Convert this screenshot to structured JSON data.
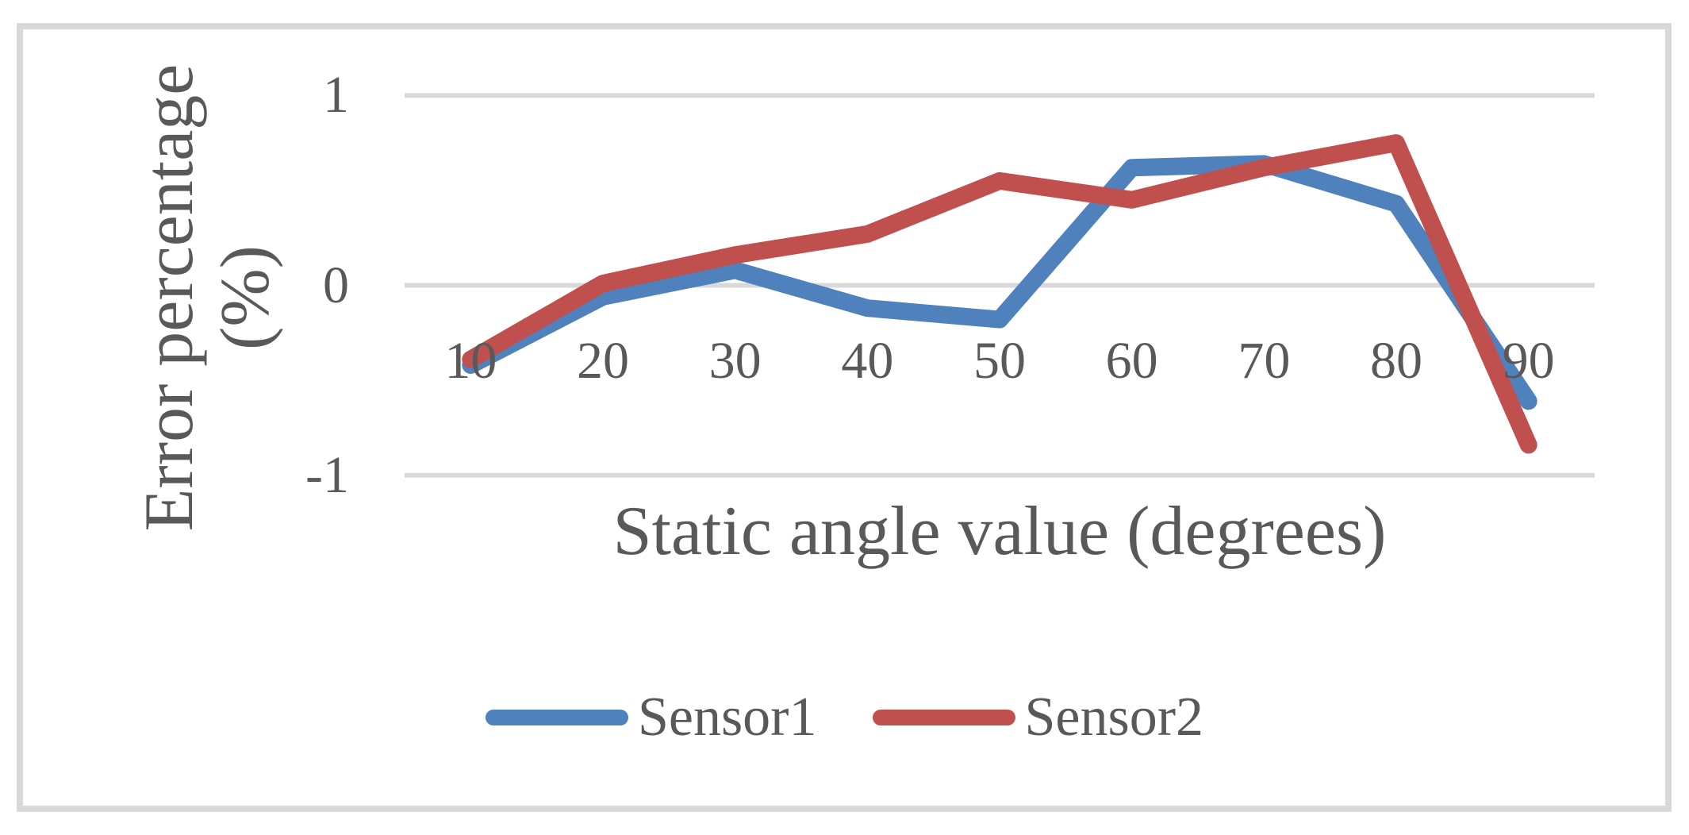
{
  "colors": {
    "sensor1": "#4F81BD",
    "sensor2": "#C0504D",
    "text": "#595959",
    "gridline": "#D9D9D9",
    "frame_border": "#D9D9D9",
    "background": "#FFFFFF"
  },
  "chart_data": {
    "type": "line",
    "categories": [
      "10",
      "20",
      "30",
      "40",
      "50",
      "60",
      "70",
      "80",
      "90"
    ],
    "series": [
      {
        "name": "Sensor1",
        "color": "#4F81BD",
        "values": [
          -0.42,
          -0.06,
          0.08,
          -0.12,
          -0.18,
          0.62,
          0.64,
          0.43,
          -0.61
        ]
      },
      {
        "name": "Sensor2",
        "color": "#C0504D",
        "values": [
          -0.39,
          0.01,
          0.16,
          0.27,
          0.55,
          0.45,
          0.62,
          0.75,
          -0.84
        ]
      }
    ],
    "title": "",
    "xlabel": "Static angle value (degrees)",
    "ylabel": "Error percentage (%)",
    "ylabel_lines": [
      "Error percentage",
      "(%)"
    ],
    "yticks": [
      "1",
      "0",
      "-1"
    ],
    "ytick_values": [
      1,
      0,
      -1
    ],
    "ylim": [
      -1,
      1
    ],
    "grid": "horizontal-only",
    "legend_position": "bottom-center"
  }
}
